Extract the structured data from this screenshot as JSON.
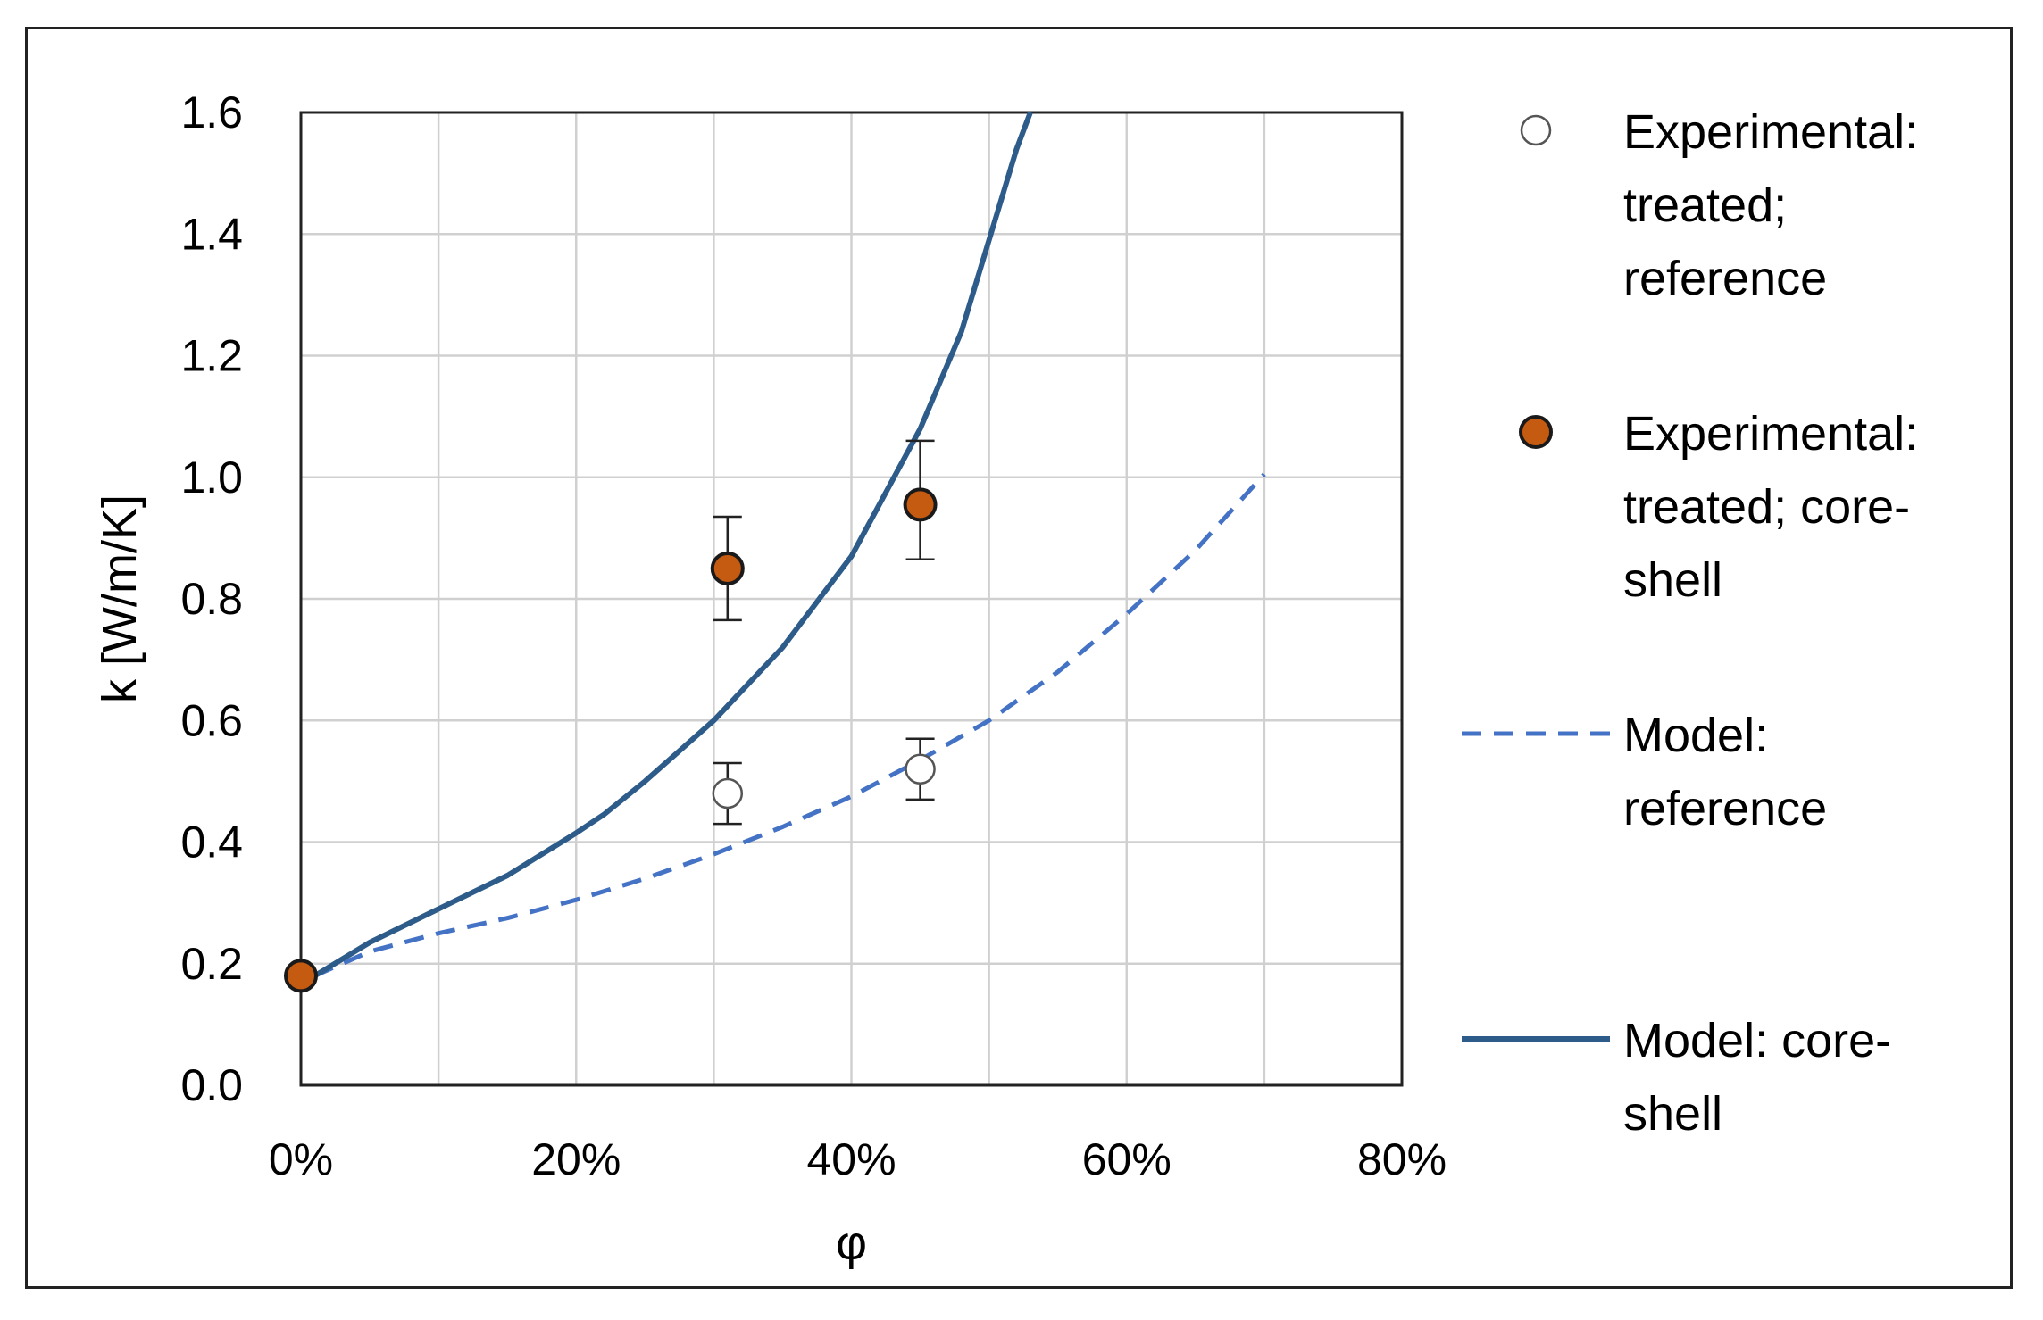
{
  "chart_data": {
    "type": "scatter",
    "xlabel": "φ",
    "ylabel": "k [W/m/K]",
    "xlim": [
      0,
      0.8
    ],
    "ylim": [
      0,
      1.6
    ],
    "x_ticks": [
      "0%",
      "20%",
      "40%",
      "60%",
      "80%"
    ],
    "y_ticks": [
      "0.0",
      "0.2",
      "0.4",
      "0.6",
      "0.8",
      "1.0",
      "1.2",
      "1.4",
      "1.6"
    ],
    "x_tick_values": [
      0,
      0.2,
      0.4,
      0.6,
      0.8
    ],
    "y_tick_values": [
      0,
      0.2,
      0.4,
      0.6,
      0.8,
      1.0,
      1.2,
      1.4,
      1.6
    ],
    "x_gridlines": [
      0.1,
      0.2,
      0.3,
      0.4,
      0.5,
      0.6,
      0.7,
      0.8
    ],
    "grid": true,
    "legend_position": "right",
    "series": [
      {
        "name": "Experimental: treated; reference",
        "kind": "marker",
        "marker": "open-circle",
        "points": [
          {
            "x": 0.31,
            "y": 0.48,
            "err_low": 0.43,
            "err_high": 0.53
          },
          {
            "x": 0.45,
            "y": 0.52,
            "err_low": 0.47,
            "err_high": 0.57
          }
        ]
      },
      {
        "name": "Experimental: treated; core-shell",
        "kind": "marker",
        "marker": "filled-circle",
        "color": "#c55a11",
        "points": [
          {
            "x": 0.0,
            "y": 0.18
          },
          {
            "x": 0.31,
            "y": 0.85,
            "err_low": 0.765,
            "err_high": 0.935
          },
          {
            "x": 0.45,
            "y": 0.955,
            "err_low": 0.865,
            "err_high": 1.06
          }
        ]
      },
      {
        "name": "Model: reference",
        "kind": "line",
        "style": "dashed",
        "color": "#4472c4",
        "points": [
          {
            "x": 0.01,
            "y": 0.18
          },
          {
            "x": 0.05,
            "y": 0.22
          },
          {
            "x": 0.1,
            "y": 0.25
          },
          {
            "x": 0.15,
            "y": 0.275
          },
          {
            "x": 0.2,
            "y": 0.305
          },
          {
            "x": 0.25,
            "y": 0.34
          },
          {
            "x": 0.3,
            "y": 0.38
          },
          {
            "x": 0.35,
            "y": 0.425
          },
          {
            "x": 0.4,
            "y": 0.475
          },
          {
            "x": 0.45,
            "y": 0.535
          },
          {
            "x": 0.5,
            "y": 0.6
          },
          {
            "x": 0.55,
            "y": 0.68
          },
          {
            "x": 0.6,
            "y": 0.775
          },
          {
            "x": 0.65,
            "y": 0.88
          },
          {
            "x": 0.7,
            "y": 1.005
          }
        ]
      },
      {
        "name": "Model: core-shell",
        "kind": "line",
        "style": "solid",
        "color": "#2e5c8a",
        "points": [
          {
            "x": 0.01,
            "y": 0.18
          },
          {
            "x": 0.05,
            "y": 0.235
          },
          {
            "x": 0.1,
            "y": 0.29
          },
          {
            "x": 0.15,
            "y": 0.345
          },
          {
            "x": 0.2,
            "y": 0.415
          },
          {
            "x": 0.22,
            "y": 0.445
          },
          {
            "x": 0.25,
            "y": 0.5
          },
          {
            "x": 0.3,
            "y": 0.6
          },
          {
            "x": 0.35,
            "y": 0.72
          },
          {
            "x": 0.4,
            "y": 0.87
          },
          {
            "x": 0.45,
            "y": 1.08
          },
          {
            "x": 0.48,
            "y": 1.24
          },
          {
            "x": 0.5,
            "y": 1.39
          },
          {
            "x": 0.52,
            "y": 1.54
          },
          {
            "x": 0.53,
            "y": 1.6
          }
        ]
      }
    ]
  },
  "legend": {
    "items": [
      {
        "lines": [
          "Experimental:",
          "treated;",
          "reference"
        ]
      },
      {
        "lines": [
          "Experimental:",
          "treated;  core-",
          "shell"
        ]
      },
      {
        "lines": [
          "Model:",
          "reference"
        ]
      },
      {
        "lines": [
          "Model: core-",
          "shell"
        ]
      }
    ]
  }
}
